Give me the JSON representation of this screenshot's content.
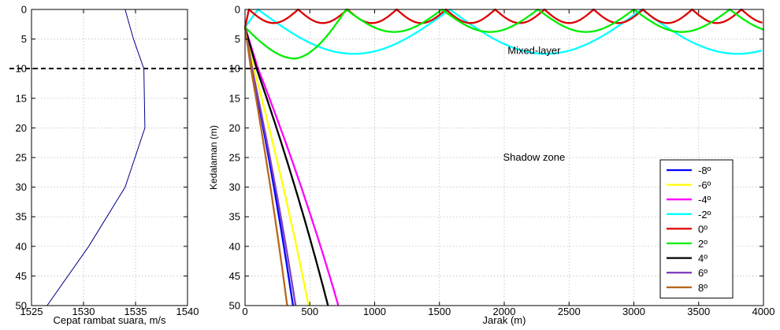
{
  "chart_data": [
    {
      "type": "line",
      "xlabel": "Cepat rambat suara, m/s",
      "ylabel": "",
      "xlim": [
        1525,
        1540
      ],
      "ylim": [
        0,
        50
      ],
      "y_reversed": true,
      "grid": true,
      "xticks": [
        "1525",
        "1530",
        "1535",
        "1540"
      ],
      "yticks": [
        "0",
        "5",
        "10",
        "15",
        "20",
        "25",
        "30",
        "35",
        "40",
        "45",
        "50"
      ],
      "series": [
        {
          "color": "#00008b",
          "points": [
            [
              1534,
              0
            ],
            [
              1534.8,
              5
            ],
            [
              1535.8,
              10
            ],
            [
              1535.9,
              20
            ],
            [
              1534,
              30
            ],
            [
              1530.5,
              40
            ],
            [
              1526.5,
              50
            ]
          ]
        }
      ]
    },
    {
      "type": "line",
      "xlabel": "Jarak (m)",
      "ylabel": "Kedalaman (m)",
      "xlim": [
        0,
        4000
      ],
      "ylim": [
        0,
        50
      ],
      "y_reversed": true,
      "grid": true,
      "xticks": [
        "0",
        "500",
        "1000",
        "1500",
        "2000",
        "2500",
        "3000",
        "3500",
        "4000"
      ],
      "yticks": [
        "0",
        "5",
        "10",
        "15",
        "20",
        "25",
        "30",
        "35",
        "40",
        "45",
        "50"
      ],
      "legend_position": "right",
      "annotations": [
        {
          "text": "Mixed-layer",
          "x": 2230,
          "y": 7.5
        },
        {
          "text": "Shadow zone",
          "x": 2230,
          "y": 25.5
        }
      ],
      "mixed_layer_depth": 10,
      "source_depth": 3,
      "series": [
        {
          "name": "-8º",
          "color": "#0000ff",
          "mode": "shadow",
          "bottom_range": 370
        },
        {
          "name": "-6º",
          "color": "#ffff00",
          "mode": "shadow",
          "bottom_range": 490
        },
        {
          "name": "-4º",
          "color": "#ff00ff",
          "mode": "shadow",
          "bottom_range": 720
        },
        {
          "name": "-2º",
          "color": "#00ffff",
          "mode": "duct",
          "turn_depth": 7.5,
          "period": 1480,
          "surface_range": 100
        },
        {
          "name": "0º",
          "color": "#dd0000",
          "mode": "duct",
          "turn_depth": 2.3,
          "period": 380,
          "surface_range": 30
        },
        {
          "name": "2º",
          "color": "#00ee00",
          "mode": "duct",
          "turn_depth": 3.8,
          "period": 740,
          "surface_range": 0,
          "first_turn_depth": 8.3,
          "first_turn_range": 410
        },
        {
          "name": "4º",
          "color": "#000000",
          "mode": "shadow",
          "bottom_range": 640
        },
        {
          "name": "6º",
          "color": "#8040c0",
          "mode": "shadow",
          "bottom_range": 390
        },
        {
          "name": "8º",
          "color": "#b8681e",
          "mode": "shadow",
          "bottom_range": 325
        }
      ]
    }
  ]
}
